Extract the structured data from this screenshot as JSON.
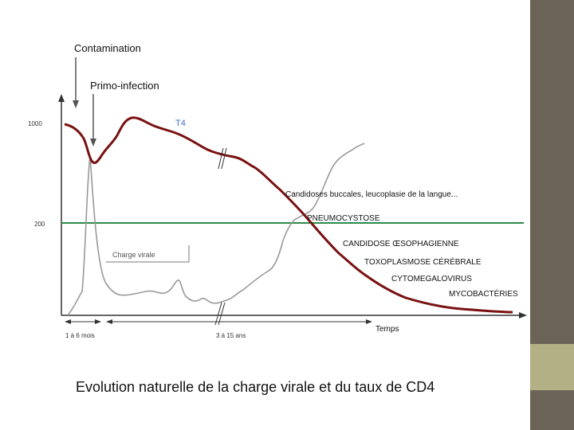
{
  "slide": {
    "caption": "Evolution naturelle de la charge virale et du taux de CD4",
    "accent_color": "#b4b086",
    "sidebar_color": "#6b6456"
  },
  "diagram": {
    "labels": {
      "contamination": "Contamination",
      "primo_infection": "Primo-infection",
      "t4": "T4",
      "y_1000": "1000",
      "y_200": "200",
      "charge_virale": "Charge virale",
      "temps": "Temps",
      "phase1": "1 à 6 mois",
      "phase2": "3 à 15 ans"
    },
    "events": [
      "Candidoses buccales, leucoplasie de la langue...",
      "PNEUMOCYSTOSE",
      "CANDIDOSE ŒSOPHAGIENNE",
      "TOXOPLASMOSE CÉRÉBRALE",
      "CYTOMEGALOVIRUS",
      "MYCOBACTÉRIES"
    ],
    "colors": {
      "cd4_curve": "#7a1010",
      "threshold_line": "#2e8b4a",
      "viral_curve": "#999999",
      "axis": "#333333"
    }
  }
}
